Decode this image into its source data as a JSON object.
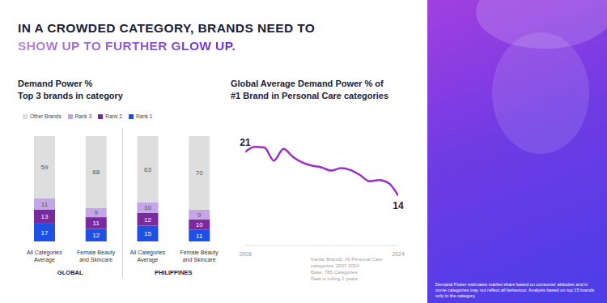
{
  "title": [
    "IN A CROWDED CATEGORY, BRANDS NEED TO",
    "SHOW UP TO FURTHER GLOW UP."
  ],
  "chart_data": [
    {
      "type": "bar",
      "title": [
        "Demand Power %",
        "Top 3 brands in category"
      ],
      "categories": [
        "All Categories Average",
        "Female Beauty and Skincare",
        "All Categories Average",
        "Female Beauty and Skincare"
      ],
      "group_labels": [
        "GLOBAL",
        "GLOBAL",
        "PHILIPPINES",
        "PHILIPPINES"
      ],
      "series": [
        {
          "name": "Rank 1",
          "color": "#1e50e6",
          "values": [
            17,
            12,
            15,
            11
          ]
        },
        {
          "name": "Rank 2",
          "color": "#7b2a9e",
          "values": [
            13,
            11,
            12,
            10
          ]
        },
        {
          "name": "Rank 3",
          "color": "#c3a6e8",
          "values": [
            11,
            9,
            10,
            9
          ]
        },
        {
          "name": "Other Brands",
          "color": "#dedede",
          "values": [
            59,
            68,
            63,
            70
          ]
        }
      ],
      "ylim": [
        0,
        100
      ],
      "stacked": true,
      "data_labels": true,
      "legend": "top",
      "tick_labels": "x"
    },
    {
      "type": "line",
      "title": [
        "Global Average Demand Power % of",
        "#1 Brand in Personal Care categories"
      ],
      "x": [
        2008,
        2009,
        2010,
        2011,
        2012,
        2013,
        2014,
        2015,
        2016,
        2017,
        2018,
        2019,
        2020,
        2021,
        2022,
        2023,
        2024
      ],
      "values": [
        21,
        21.8,
        21.7,
        19.6,
        21.5,
        20.2,
        19.3,
        18.8,
        18.5,
        18.0,
        18.4,
        18.1,
        17.3,
        16.3,
        16.5,
        16.0,
        14
      ],
      "color": "#9b2fc4",
      "xlim": [
        2008,
        2024
      ],
      "xticks": [
        2008,
        2024
      ],
      "ylim": [
        6,
        26
      ],
      "tick_labels": "x",
      "annotations": [
        {
          "x": 2008,
          "y": 21,
          "text": "21"
        },
        {
          "x": 2024,
          "y": 14,
          "text": "14"
        }
      ],
      "source": [
        "Kantar BrandZ. All Personal Care categories, 2007-2024",
        "Base: 785 Categories",
        "Data is rolling 2 years."
      ]
    }
  ],
  "footnote": "Demand Power estimates market share based on consumer attitudes and in some categories may not reflect all behaviour. Analysis based on top 15 brands only in the category."
}
